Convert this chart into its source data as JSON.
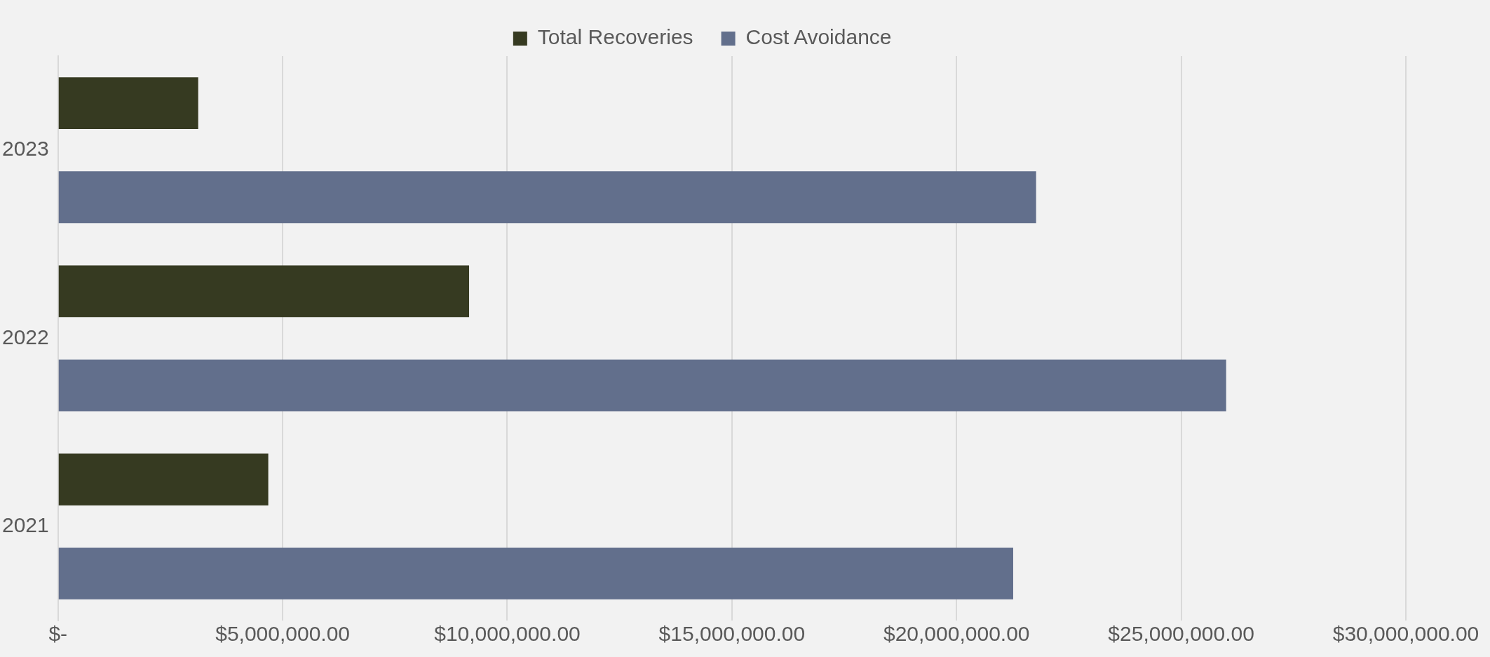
{
  "chart_data": {
    "type": "bar",
    "orientation": "horizontal",
    "categories": [
      "2023",
      "2022",
      "2021"
    ],
    "series": [
      {
        "name": "Total Recoveries",
        "color": "#363a21",
        "values": [
          3120000,
          9150000,
          4680000
        ]
      },
      {
        "name": "Cost Avoidance",
        "color": "#626f8c",
        "values": [
          21770000,
          26000000,
          21260000
        ]
      }
    ],
    "xlim": [
      0,
      30000000
    ],
    "xticks": [
      {
        "value": 0,
        "label": "$-"
      },
      {
        "value": 5000000,
        "label": "$5,000,000.00"
      },
      {
        "value": 10000000,
        "label": "$10,000,000.00"
      },
      {
        "value": 15000000,
        "label": "$15,000,000.00"
      },
      {
        "value": 20000000,
        "label": "$20,000,000.00"
      },
      {
        "value": 25000000,
        "label": "$25,000,000.00"
      },
      {
        "value": 30000000,
        "label": "$30,000,000.00"
      }
    ],
    "grid": "x",
    "legend": "top"
  }
}
